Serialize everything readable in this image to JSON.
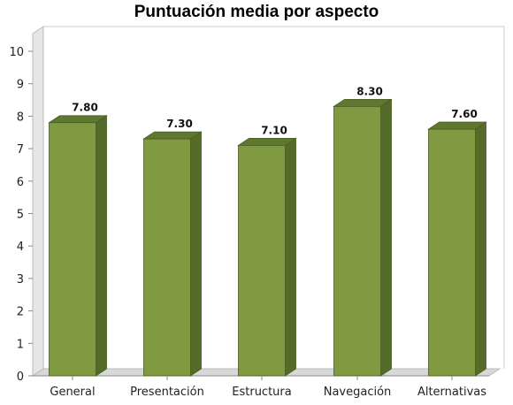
{
  "chart_data": {
    "type": "bar",
    "title": "Puntuación media por aspecto",
    "xlabel": "",
    "ylabel": "",
    "categories": [
      "General",
      "Presentación",
      "Estructura",
      "Navegación",
      "Alternativas"
    ],
    "values": [
      7.8,
      7.3,
      7.1,
      8.3,
      7.6
    ],
    "value_labels": [
      "7.80",
      "7.30",
      "7.10",
      "8.30",
      "7.60"
    ],
    "y_ticks": [
      "0",
      "1",
      "2",
      "3",
      "4",
      "5",
      "6",
      "7",
      "8",
      "9",
      "10"
    ],
    "ylim": [
      0,
      10
    ],
    "grid": false,
    "legend": "none",
    "style": "3d-bar",
    "colors": {
      "bar_front": "#7f9a40",
      "bar_side": "#556b2a",
      "bar_top": "#5f7830",
      "bar_edge": "#4a5c22",
      "floor": "#d8d8d8",
      "wall": "#e6e6e6",
      "axis": "#888888"
    }
  }
}
